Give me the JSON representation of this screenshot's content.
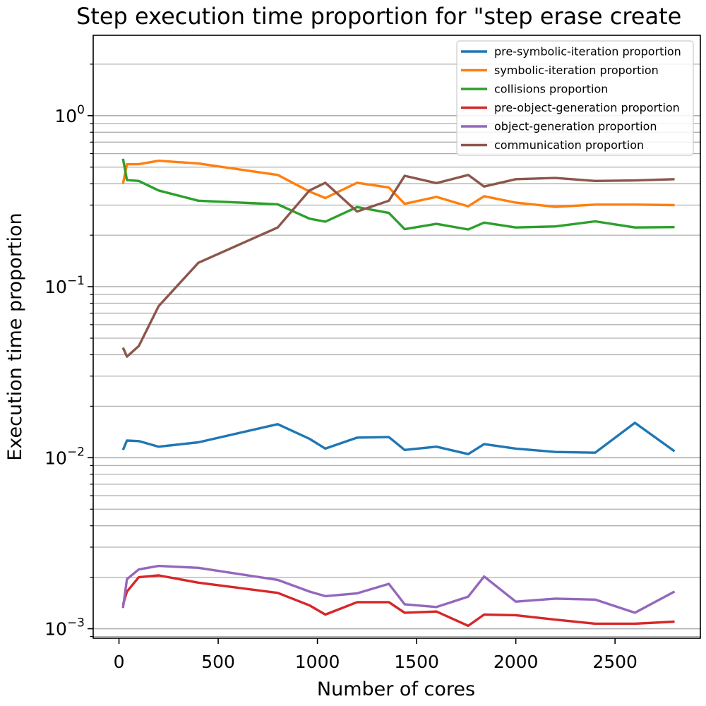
{
  "chart_data": {
    "type": "line",
    "title": "Step execution time proportion for \"step erase create",
    "xlabel": "Number of cores",
    "ylabel": "Execution time proportion",
    "yscale": "log",
    "xlim": [
      -130,
      2930
    ],
    "ylim": [
      0.00088,
      2.95
    ],
    "xticks": [
      0,
      500,
      1000,
      1500,
      2000,
      2500
    ],
    "xtick_labels": [
      "0",
      "500",
      "1000",
      "1500",
      "2000",
      "2500"
    ],
    "ytick_major": [
      {
        "value": 0.001,
        "base": "10",
        "exp": "−3"
      },
      {
        "value": 0.01,
        "base": "10",
        "exp": "−2"
      },
      {
        "value": 0.1,
        "base": "10",
        "exp": "−1"
      },
      {
        "value": 1,
        "base": "10",
        "exp": "0"
      }
    ],
    "grid": "y-axis major and minor gridlines",
    "legend_position": "top-right",
    "series": [
      {
        "name": "pre-symbolic-iteration proportion",
        "color": "#1f77b4",
        "points": [
          [
            20,
            0.0111
          ],
          [
            40,
            0.0126
          ],
          [
            100,
            0.0125
          ],
          [
            200,
            0.0116
          ],
          [
            400,
            0.0123
          ],
          [
            800,
            0.0157
          ],
          [
            960,
            0.0129
          ],
          [
            1040,
            0.0113
          ],
          [
            1200,
            0.0131
          ],
          [
            1360,
            0.0132
          ],
          [
            1440,
            0.0111
          ],
          [
            1600,
            0.0116
          ],
          [
            1760,
            0.0105
          ],
          [
            1840,
            0.012
          ],
          [
            2000,
            0.0113
          ],
          [
            2200,
            0.0108
          ],
          [
            2400,
            0.0107
          ],
          [
            2600,
            0.016
          ],
          [
            2800,
            0.0109
          ]
        ]
      },
      {
        "name": "symbolic-iteration proportion",
        "color": "#ff7f0e",
        "points": [
          [
            20,
            0.4
          ],
          [
            40,
            0.52
          ],
          [
            100,
            0.52
          ],
          [
            200,
            0.545
          ],
          [
            400,
            0.525
          ],
          [
            800,
            0.45
          ],
          [
            960,
            0.36
          ],
          [
            1040,
            0.33
          ],
          [
            1200,
            0.405
          ],
          [
            1360,
            0.38
          ],
          [
            1440,
            0.305
          ],
          [
            1600,
            0.335
          ],
          [
            1760,
            0.295
          ],
          [
            1840,
            0.338
          ],
          [
            2000,
            0.31
          ],
          [
            2200,
            0.293
          ],
          [
            2400,
            0.302
          ],
          [
            2600,
            0.302
          ],
          [
            2800,
            0.3
          ]
        ]
      },
      {
        "name": "collisions proportion",
        "color": "#2ca02c",
        "points": [
          [
            20,
            0.56
          ],
          [
            40,
            0.42
          ],
          [
            100,
            0.415
          ],
          [
            200,
            0.365
          ],
          [
            400,
            0.318
          ],
          [
            800,
            0.303
          ],
          [
            960,
            0.25
          ],
          [
            1040,
            0.24
          ],
          [
            1200,
            0.292
          ],
          [
            1360,
            0.27
          ],
          [
            1440,
            0.217
          ],
          [
            1600,
            0.233
          ],
          [
            1760,
            0.216
          ],
          [
            1840,
            0.237
          ],
          [
            2000,
            0.222
          ],
          [
            2200,
            0.225
          ],
          [
            2400,
            0.241
          ],
          [
            2600,
            0.222
          ],
          [
            2800,
            0.223
          ]
        ]
      },
      {
        "name": "pre-object-generation proportion",
        "color": "#d62728",
        "points": [
          [
            20,
            0.00138
          ],
          [
            40,
            0.00165
          ],
          [
            100,
            0.002
          ],
          [
            200,
            0.00205
          ],
          [
            400,
            0.00186
          ],
          [
            800,
            0.00162
          ],
          [
            960,
            0.00137
          ],
          [
            1040,
            0.00121
          ],
          [
            1200,
            0.00143
          ],
          [
            1360,
            0.00143
          ],
          [
            1440,
            0.00124
          ],
          [
            1600,
            0.00126
          ],
          [
            1760,
            0.00104
          ],
          [
            1840,
            0.00121
          ],
          [
            2000,
            0.0012
          ],
          [
            2200,
            0.00113
          ],
          [
            2400,
            0.00107
          ],
          [
            2600,
            0.00107
          ],
          [
            2800,
            0.0011
          ]
        ]
      },
      {
        "name": "object-generation proportion",
        "color": "#9467bd",
        "points": [
          [
            20,
            0.00132
          ],
          [
            40,
            0.00195
          ],
          [
            100,
            0.00222
          ],
          [
            200,
            0.00233
          ],
          [
            400,
            0.00227
          ],
          [
            800,
            0.00193
          ],
          [
            960,
            0.00165
          ],
          [
            1040,
            0.00155
          ],
          [
            1200,
            0.00161
          ],
          [
            1360,
            0.00183
          ],
          [
            1440,
            0.00139
          ],
          [
            1600,
            0.00134
          ],
          [
            1760,
            0.00154
          ],
          [
            1840,
            0.00202
          ],
          [
            2000,
            0.00144
          ],
          [
            2200,
            0.0015
          ],
          [
            2400,
            0.00148
          ],
          [
            2600,
            0.00124
          ],
          [
            2800,
            0.00165
          ]
        ]
      },
      {
        "name": "communication proportion",
        "color": "#8c564b",
        "points": [
          [
            20,
            0.044
          ],
          [
            40,
            0.039
          ],
          [
            100,
            0.045
          ],
          [
            200,
            0.077
          ],
          [
            400,
            0.138
          ],
          [
            800,
            0.222
          ],
          [
            960,
            0.365
          ],
          [
            1040,
            0.405
          ],
          [
            1200,
            0.275
          ],
          [
            1360,
            0.318
          ],
          [
            1440,
            0.445
          ],
          [
            1600,
            0.403
          ],
          [
            1760,
            0.45
          ],
          [
            1840,
            0.385
          ],
          [
            2000,
            0.425
          ],
          [
            2200,
            0.432
          ],
          [
            2400,
            0.415
          ],
          [
            2600,
            0.418
          ],
          [
            2800,
            0.425
          ]
        ]
      }
    ]
  }
}
